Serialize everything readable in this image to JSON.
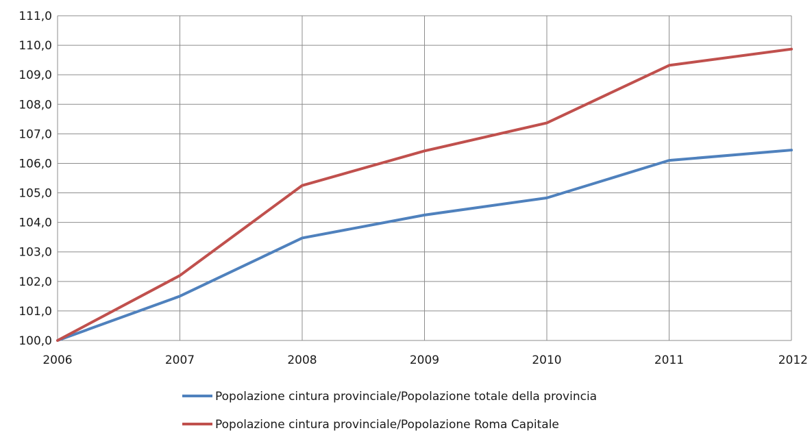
{
  "chart_data": {
    "type": "line",
    "title": "",
    "xlabel": "",
    "ylabel": "",
    "x": [
      "2006",
      "2007",
      "2008",
      "2009",
      "2010",
      "2011",
      "2012"
    ],
    "ylim": [
      100,
      111
    ],
    "yticks": [
      "100,0",
      "101,0",
      "102,0",
      "103,0",
      "104,0",
      "105,0",
      "106,0",
      "107,0",
      "108,0",
      "109,0",
      "110,0",
      "111,0"
    ],
    "grid": true,
    "legend_position": "bottom",
    "series": [
      {
        "name": "Popolazione cintura provinciale/Popolazione totale della provincia",
        "color": "#4f81bd",
        "values": [
          100.0,
          101.5,
          103.47,
          104.25,
          104.83,
          106.1,
          106.45
        ]
      },
      {
        "name": "Popolazione cintura provinciale/Popolazione Roma Capitale",
        "color": "#c0504d",
        "values": [
          100.0,
          102.2,
          105.25,
          106.42,
          107.37,
          109.32,
          109.87
        ]
      }
    ]
  }
}
